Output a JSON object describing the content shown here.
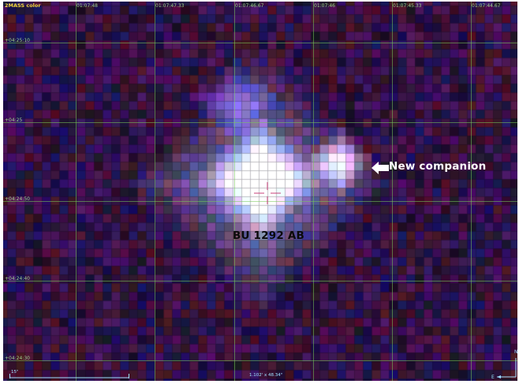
{
  "viewer": {
    "survey_title": "2MASS color",
    "ra_labels": [
      "01:07:48",
      "01:07:47.33",
      "01:07:46.67",
      "01:07:46",
      "01:07:45.33",
      "01:07:44.67"
    ],
    "dec_labels": [
      "+04:25:10",
      "+04:25",
      "+04:24:50",
      "+04:24:40",
      "+04:24:30"
    ],
    "fov": "1.102' x 48.34\"",
    "scale_label": "15\"",
    "compass": {
      "north": "N",
      "east": "E"
    },
    "colors": {
      "grid": "#78c85a",
      "label": "#9fd28c",
      "title": "#f4d63e",
      "overlay": "#9fe0ff",
      "reticle": "#c8407a"
    }
  },
  "annotations": {
    "companion_label": "New companion",
    "primary_label": "BU 1292 AB",
    "arrow_icon": "left-arrow-icon"
  }
}
